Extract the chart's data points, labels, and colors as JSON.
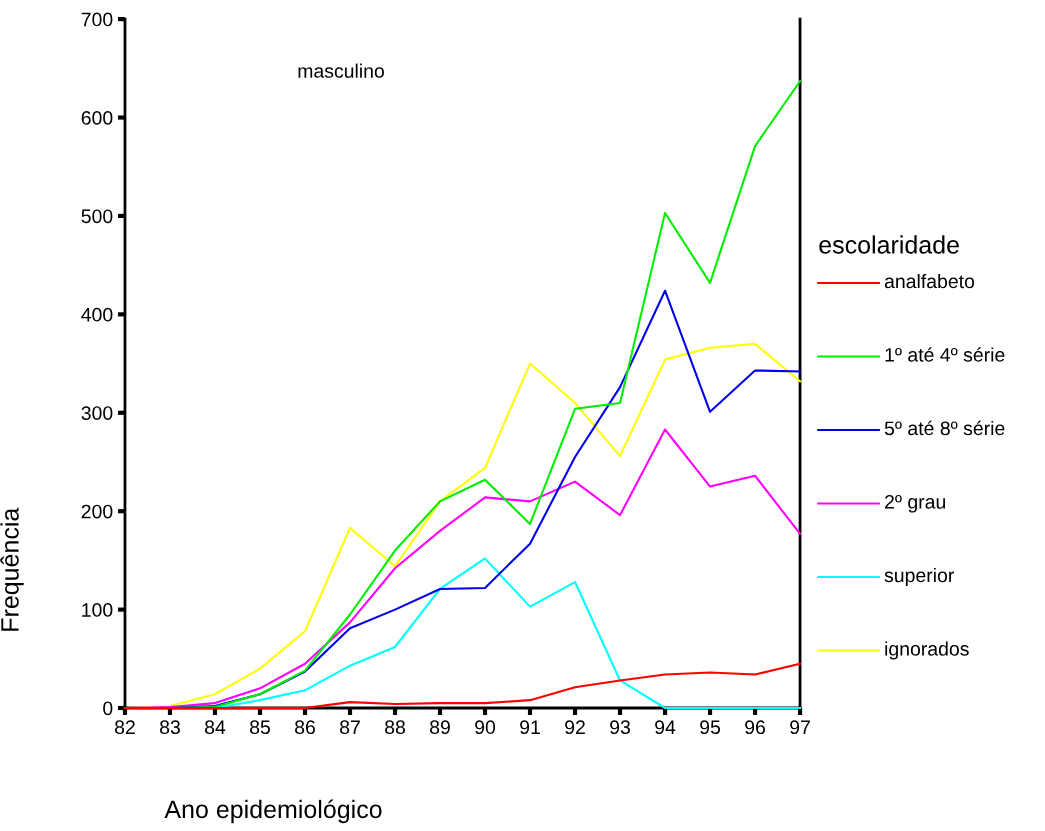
{
  "chart_data": {
    "type": "line",
    "xlabel": "Ano epidemiológico",
    "ylabel": "Frequência",
    "legend_title": "escolaridade",
    "annotations": [
      "masculino"
    ],
    "x": [
      82,
      83,
      84,
      85,
      86,
      87,
      88,
      89,
      90,
      91,
      92,
      93,
      94,
      95,
      96,
      97
    ],
    "xlim": [
      82,
      97
    ],
    "xticks": [
      82,
      83,
      84,
      85,
      86,
      87,
      88,
      89,
      90,
      91,
      92,
      93,
      94,
      95,
      96,
      97
    ],
    "ylim": [
      0,
      700
    ],
    "yticks": [
      0,
      100,
      200,
      300,
      400,
      500,
      600,
      700
    ],
    "grid": false,
    "legend": "right",
    "marker": "none",
    "line_style": "solid",
    "series": [
      {
        "name": "analfabeto",
        "color": "#ff0000",
        "values": [
          0,
          0,
          0,
          0,
          0,
          6,
          4,
          5,
          5,
          8,
          21,
          28,
          34,
          36,
          34,
          45
        ]
      },
      {
        "name": "1º até 4º série",
        "color": "#00ee00",
        "values": [
          0,
          0,
          1,
          14,
          38,
          95,
          160,
          210,
          232,
          187,
          304,
          310,
          503,
          432,
          571,
          637
        ]
      },
      {
        "name": "5º até 8º série",
        "color": "#0000ee",
        "values": [
          0,
          0,
          2,
          14,
          37,
          81,
          100,
          121,
          122,
          167,
          255,
          326,
          424,
          301,
          343,
          342
        ]
      },
      {
        "name": "2º grau",
        "color": "#ff00ff",
        "values": [
          0,
          1,
          5,
          20,
          45,
          87,
          142,
          180,
          214,
          210,
          230,
          196,
          283,
          225,
          236,
          177
        ]
      },
      {
        "name": "superior",
        "color": "#00ffff",
        "values": [
          0,
          0,
          0,
          8,
          18,
          43,
          62,
          121,
          152,
          103,
          128,
          28,
          0,
          0,
          0,
          0
        ]
      },
      {
        "name": "ignorados",
        "color": "#ffff00",
        "values": [
          0,
          2,
          14,
          40,
          78,
          183,
          144,
          210,
          244,
          350,
          310,
          256,
          354,
          366,
          370,
          332
        ]
      }
    ]
  }
}
